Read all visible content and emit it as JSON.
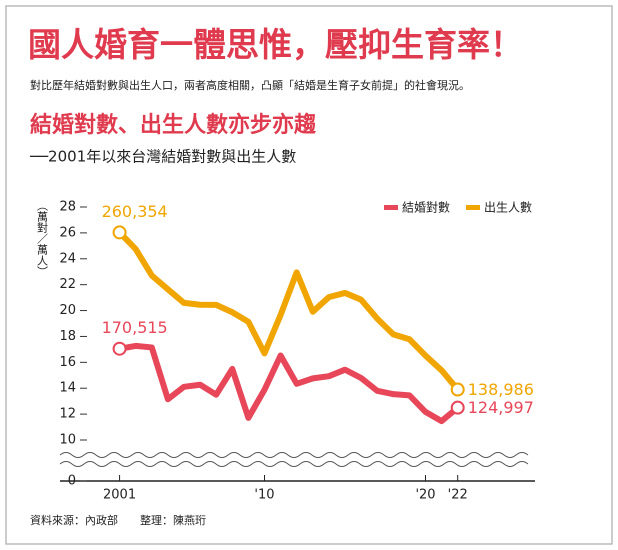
{
  "chart_data": {
    "type": "line",
    "title": "國人婚育一體思惟，壓抑生育率！",
    "subtitle": "對比歷年結婚對數與出生人口，兩者高度相關，凸顯「結婚是生育子女前提」的社會現況。",
    "chart_title": "結婚對數、出生人數亦步亦趨",
    "chart_subtitle": "──2001年以來台灣結婚對數與出生人數",
    "y_label": "（萬對／萬人）",
    "source": "資料來源：內政部　　整理：陳燕珩",
    "x": [
      2001,
      2002,
      2003,
      2004,
      2005,
      2006,
      2007,
      2008,
      2009,
      2010,
      2011,
      2012,
      2013,
      2014,
      2015,
      2016,
      2017,
      2018,
      2019,
      2020,
      2021,
      2022
    ],
    "series": [
      {
        "name": "結婚對數",
        "color": "#e8475a",
        "values": [
          17.0515,
          17.27,
          17.15,
          13.15,
          14.11,
          14.27,
          13.5,
          15.49,
          11.71,
          13.88,
          16.53,
          14.34,
          14.76,
          14.93,
          15.43,
          14.79,
          13.8,
          13.54,
          13.45,
          12.17,
          11.46,
          12.4997
        ],
        "value_labels": [
          "170,515",
          null,
          null,
          null,
          null,
          null,
          null,
          null,
          null,
          null,
          null,
          null,
          null,
          null,
          null,
          null,
          null,
          null,
          null,
          null,
          null,
          "124,997"
        ]
      },
      {
        "name": "出生人數",
        "color": "#f0a500",
        "values": [
          26.0354,
          24.75,
          22.71,
          21.64,
          20.59,
          20.45,
          20.44,
          19.87,
          19.13,
          16.69,
          19.66,
          22.95,
          19.91,
          21.04,
          21.36,
          20.84,
          19.38,
          18.16,
          17.78,
          16.52,
          15.38,
          13.8986
        ],
        "value_labels": [
          "260,354",
          null,
          null,
          null,
          null,
          null,
          null,
          null,
          null,
          null,
          null,
          null,
          null,
          null,
          null,
          null,
          null,
          null,
          null,
          null,
          null,
          "138,986"
        ]
      }
    ],
    "xlim": [
      1997.3,
      2026.8
    ],
    "xticks": [
      2001,
      {
        "value": 2010,
        "label": "'10"
      },
      {
        "value": 2020,
        "label": "'20"
      },
      {
        "value": 2022,
        "label": "'22"
      }
    ],
    "ylim": [
      10,
      28
    ],
    "yticks": [
      0,
      10,
      12,
      14,
      16,
      18,
      20,
      22,
      24,
      26,
      28
    ],
    "axis_break": true,
    "legend": "upper right"
  }
}
